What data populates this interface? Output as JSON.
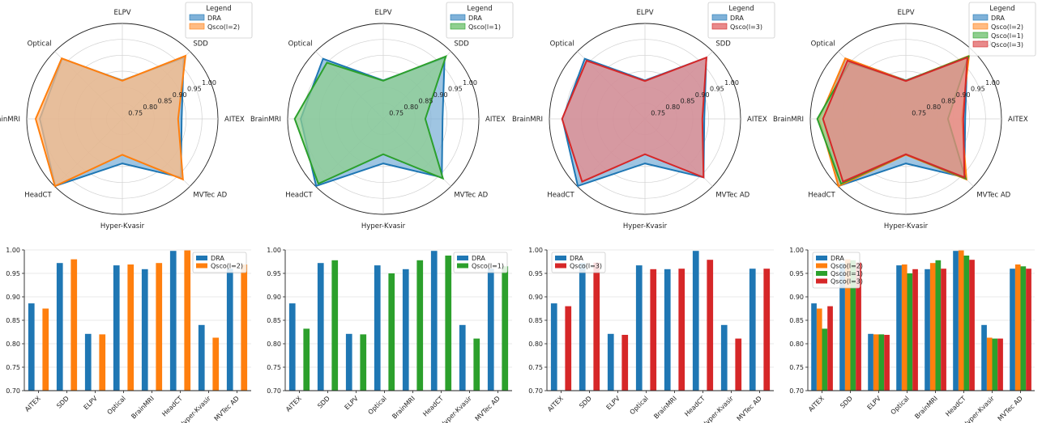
{
  "chart_data": [
    {
      "type": "radar",
      "categories": [
        "AITEX",
        "SDD",
        "ELPV",
        "Optical",
        "BrainMRI",
        "HeadCT",
        "Hyper-Kvasir",
        "MVTec AD"
      ],
      "rlim": [
        0.7,
        1.0
      ],
      "rticks": [
        "0.75",
        "0.80",
        "0.85",
        "0.90",
        "0.95",
        "1.00"
      ],
      "grid": true,
      "legend_title": "Legend",
      "legend_position": "top-right",
      "series": [
        {
          "name": "DRA",
          "color": "#1f77b4",
          "fill": "#7fb1d8",
          "values": [
            0.886,
            0.972,
            0.821,
            0.967,
            0.959,
            0.998,
            0.84,
            0.96
          ]
        },
        {
          "name": "Qsco(l=2)",
          "color": "#ff7f0e",
          "fill": "#ffbb83",
          "values": [
            0.875,
            0.98,
            0.82,
            0.969,
            0.972,
            0.999,
            0.813,
            0.969
          ]
        }
      ]
    },
    {
      "type": "radar",
      "categories": [
        "AITEX",
        "SDD",
        "ELPV",
        "Optical",
        "BrainMRI",
        "HeadCT",
        "Hyper-Kvasir",
        "MVTec AD"
      ],
      "rlim": [
        0.7,
        1.0
      ],
      "rticks": [
        "0.75",
        "0.80",
        "0.85",
        "0.90",
        "0.95",
        "1.00"
      ],
      "grid": true,
      "legend_title": "Legend",
      "legend_position": "top-right",
      "series": [
        {
          "name": "DRA",
          "color": "#1f77b4",
          "fill": "#7fb1d8",
          "values": [
            0.886,
            0.972,
            0.821,
            0.967,
            0.959,
            0.998,
            0.84,
            0.96
          ]
        },
        {
          "name": "Qsco(l=1)",
          "color": "#2ca02c",
          "fill": "#8fcf8f",
          "values": [
            0.832,
            0.978,
            0.82,
            0.95,
            0.978,
            0.988,
            0.811,
            0.965
          ]
        }
      ]
    },
    {
      "type": "radar",
      "categories": [
        "AITEX",
        "SDD",
        "ELPV",
        "Optical",
        "BrainMRI",
        "HeadCT",
        "Hyper-Kvasir",
        "MVTec AD"
      ],
      "rlim": [
        0.7,
        1.0
      ],
      "rticks": [
        "0.75",
        "0.80",
        "0.85",
        "0.90",
        "0.95",
        "1.00"
      ],
      "grid": true,
      "legend_title": "Legend",
      "legend_position": "top-right",
      "series": [
        {
          "name": "DRA",
          "color": "#1f77b4",
          "fill": "#7fb1d8",
          "values": [
            0.886,
            0.972,
            0.821,
            0.967,
            0.959,
            0.998,
            0.84,
            0.96
          ]
        },
        {
          "name": "Qsco(l=3)",
          "color": "#d62728",
          "fill": "#e88a8b",
          "values": [
            0.88,
            0.973,
            0.819,
            0.959,
            0.96,
            0.979,
            0.811,
            0.96
          ]
        }
      ]
    },
    {
      "type": "radar",
      "categories": [
        "AITEX",
        "SDD",
        "ELPV",
        "Optical",
        "BrainMRI",
        "HeadCT",
        "Hyper-Kvasir",
        "MVTec AD"
      ],
      "rlim": [
        0.7,
        1.0
      ],
      "rticks": [
        "0.75",
        "0.80",
        "0.85",
        "0.90",
        "0.95",
        "1.00"
      ],
      "grid": true,
      "legend_title": "Legend",
      "legend_position": "top-right",
      "series": [
        {
          "name": "DRA",
          "color": "#1f77b4",
          "fill": "#7fb1d8",
          "values": [
            0.886,
            0.972,
            0.821,
            0.967,
            0.959,
            0.998,
            0.84,
            0.96
          ]
        },
        {
          "name": "Qsco(l=2)",
          "color": "#ff7f0e",
          "fill": "#ffbb83",
          "values": [
            0.875,
            0.98,
            0.82,
            0.969,
            0.972,
            0.999,
            0.813,
            0.969
          ]
        },
        {
          "name": "Qsco(l=1)",
          "color": "#2ca02c",
          "fill": "#8fcf8f",
          "values": [
            0.832,
            0.978,
            0.82,
            0.95,
            0.978,
            0.988,
            0.811,
            0.965
          ]
        },
        {
          "name": "Qsco(l=3)",
          "color": "#d62728",
          "fill": "#e88a8b",
          "values": [
            0.88,
            0.973,
            0.819,
            0.959,
            0.96,
            0.979,
            0.811,
            0.96
          ]
        }
      ]
    },
    {
      "type": "bar",
      "categories": [
        "AITEX",
        "SDD",
        "ELPV",
        "Optical",
        "BrainMRI",
        "HeadCT",
        "Hyper-Kvasir",
        "MVTec AD"
      ],
      "ylim": [
        0.7,
        1.0
      ],
      "yticks": [
        "0.70",
        "0.75",
        "0.80",
        "0.85",
        "0.90",
        "0.95",
        "1.00"
      ],
      "grid": true,
      "legend_position": "top-right",
      "series": [
        {
          "name": "DRA",
          "color": "#1f77b4",
          "values": [
            0.886,
            0.972,
            0.821,
            0.967,
            0.959,
            0.998,
            0.84,
            0.96
          ]
        },
        {
          "name": "Qsco(l=2)",
          "color": "#ff7f0e",
          "values": [
            0.875,
            0.98,
            0.82,
            0.969,
            0.972,
            0.999,
            0.813,
            0.969
          ]
        }
      ]
    },
    {
      "type": "bar",
      "categories": [
        "AITEX",
        "SDD",
        "ELPV",
        "Optical",
        "BrainMRI",
        "HeadCT",
        "Hyper-Kvasir",
        "MVTec AD"
      ],
      "ylim": [
        0.7,
        1.0
      ],
      "yticks": [
        "0.70",
        "0.75",
        "0.80",
        "0.85",
        "0.90",
        "0.95",
        "1.00"
      ],
      "grid": true,
      "legend_position": "top-right",
      "series": [
        {
          "name": "DRA",
          "color": "#1f77b4",
          "values": [
            0.886,
            0.972,
            0.821,
            0.967,
            0.959,
            0.998,
            0.84,
            0.96
          ]
        },
        {
          "name": "Qsco(l=1)",
          "color": "#2ca02c",
          "values": [
            0.832,
            0.978,
            0.82,
            0.95,
            0.978,
            0.988,
            0.811,
            0.965
          ]
        }
      ]
    },
    {
      "type": "bar",
      "categories": [
        "AITEX",
        "SDD",
        "ELPV",
        "Optical",
        "BrainMRI",
        "HeadCT",
        "Hyper-Kvasir",
        "MVTec AD"
      ],
      "ylim": [
        0.7,
        1.0
      ],
      "yticks": [
        "0.70",
        "0.75",
        "0.80",
        "0.85",
        "0.90",
        "0.95",
        "1.00"
      ],
      "grid": true,
      "legend_position": "top-left",
      "series": [
        {
          "name": "DRA",
          "color": "#1f77b4",
          "values": [
            0.886,
            0.972,
            0.821,
            0.967,
            0.959,
            0.998,
            0.84,
            0.96
          ]
        },
        {
          "name": "Qsco(l=3)",
          "color": "#d62728",
          "values": [
            0.88,
            0.973,
            0.819,
            0.959,
            0.96,
            0.979,
            0.811,
            0.96
          ]
        }
      ]
    },
    {
      "type": "bar",
      "categories": [
        "AITEX",
        "SDD",
        "ELPV",
        "Optical",
        "BrainMRI",
        "HeadCT",
        "Hyper-Kvasir",
        "MVTec AD"
      ],
      "ylim": [
        0.7,
        1.0
      ],
      "yticks": [
        "0.70",
        "0.75",
        "0.80",
        "0.85",
        "0.90",
        "0.95",
        "1.00"
      ],
      "grid": true,
      "legend_position": "top-left",
      "series": [
        {
          "name": "DRA",
          "color": "#1f77b4",
          "values": [
            0.886,
            0.972,
            0.821,
            0.967,
            0.959,
            0.998,
            0.84,
            0.96
          ]
        },
        {
          "name": "Qsco(l=2)",
          "color": "#ff7f0e",
          "values": [
            0.875,
            0.98,
            0.82,
            0.969,
            0.972,
            0.999,
            0.813,
            0.969
          ]
        },
        {
          "name": "Qsco(l=1)",
          "color": "#2ca02c",
          "values": [
            0.832,
            0.978,
            0.82,
            0.95,
            0.978,
            0.988,
            0.811,
            0.965
          ]
        },
        {
          "name": "Qsco(l=3)",
          "color": "#d62728",
          "values": [
            0.88,
            0.973,
            0.819,
            0.959,
            0.96,
            0.979,
            0.811,
            0.96
          ]
        }
      ]
    }
  ]
}
